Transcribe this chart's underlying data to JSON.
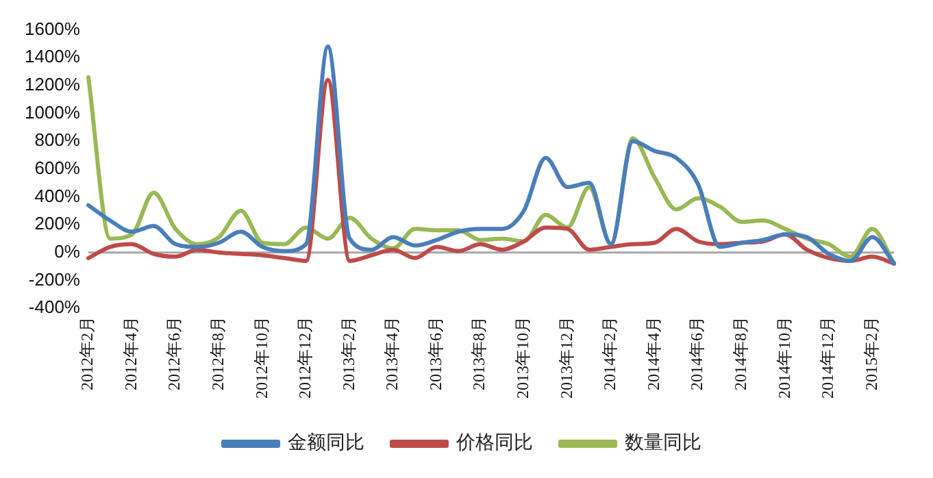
{
  "chart_data": {
    "type": "line",
    "categories": [
      "2012年2月",
      null,
      "2012年4月",
      null,
      "2012年6月",
      null,
      "2012年8月",
      null,
      "2012年10月",
      null,
      "2012年12月",
      null,
      "2013年2月",
      null,
      "2013年4月",
      null,
      "2013年6月",
      null,
      "2013年8月",
      null,
      "2013年10月",
      null,
      "2013年12月",
      null,
      "2014年2月",
      null,
      "2014年4月",
      null,
      "2014年6月",
      null,
      "2014年8月",
      null,
      "2014年10月",
      null,
      "2014年12月",
      null,
      "2015年2月",
      null
    ],
    "series": [
      {
        "name": "金额同比",
        "color": "#4a7ebb",
        "values": [
          340,
          230,
          150,
          190,
          60,
          40,
          70,
          150,
          40,
          10,
          60,
          1480,
          100,
          20,
          110,
          50,
          90,
          150,
          170,
          170,
          300,
          680,
          470,
          500,
          60,
          800,
          730,
          680,
          490,
          40,
          70,
          90,
          130,
          110,
          -10,
          -60,
          110,
          -80
        ]
      },
      {
        "name": "价格同比",
        "color": "#be4b48",
        "values": [
          -40,
          40,
          60,
          -10,
          -30,
          20,
          0,
          -10,
          -20,
          -40,
          -60,
          1240,
          -60,
          -20,
          20,
          -40,
          40,
          10,
          60,
          20,
          80,
          180,
          170,
          20,
          40,
          60,
          70,
          170,
          80,
          60,
          70,
          80,
          130,
          20,
          -40,
          -60,
          -30,
          -80
        ]
      },
      {
        "name": "数量同比",
        "color": "#98b954",
        "values": [
          1260,
          100,
          130,
          430,
          170,
          60,
          110,
          300,
          70,
          60,
          180,
          100,
          250,
          100,
          30,
          170,
          160,
          160,
          90,
          100,
          80,
          270,
          180,
          470,
          60,
          820,
          540,
          310,
          390,
          330,
          220,
          230,
          170,
          100,
          60,
          -30,
          170,
          -80
        ]
      }
    ],
    "ylim": [
      -400,
      1600
    ],
    "yticks": [
      {
        "value": -400,
        "label": "-400%"
      },
      {
        "value": -200,
        "label": "-200%"
      },
      {
        "value": 0,
        "label": "0%"
      },
      {
        "value": 200,
        "label": "200%"
      },
      {
        "value": 400,
        "label": "400%"
      },
      {
        "value": 600,
        "label": "600%"
      },
      {
        "value": 800,
        "label": "800%"
      },
      {
        "value": 1000,
        "label": "1000%"
      },
      {
        "value": 1200,
        "label": "1200%"
      },
      {
        "value": 1400,
        "label": "1400%"
      },
      {
        "value": 1600,
        "label": "1600%"
      }
    ],
    "ref_lines": [
      {
        "axis": "y",
        "value": 0,
        "color": "#a6a6a6"
      }
    ],
    "grid": false,
    "legend": "bottom",
    "marker": "none",
    "line_style": "solid"
  }
}
